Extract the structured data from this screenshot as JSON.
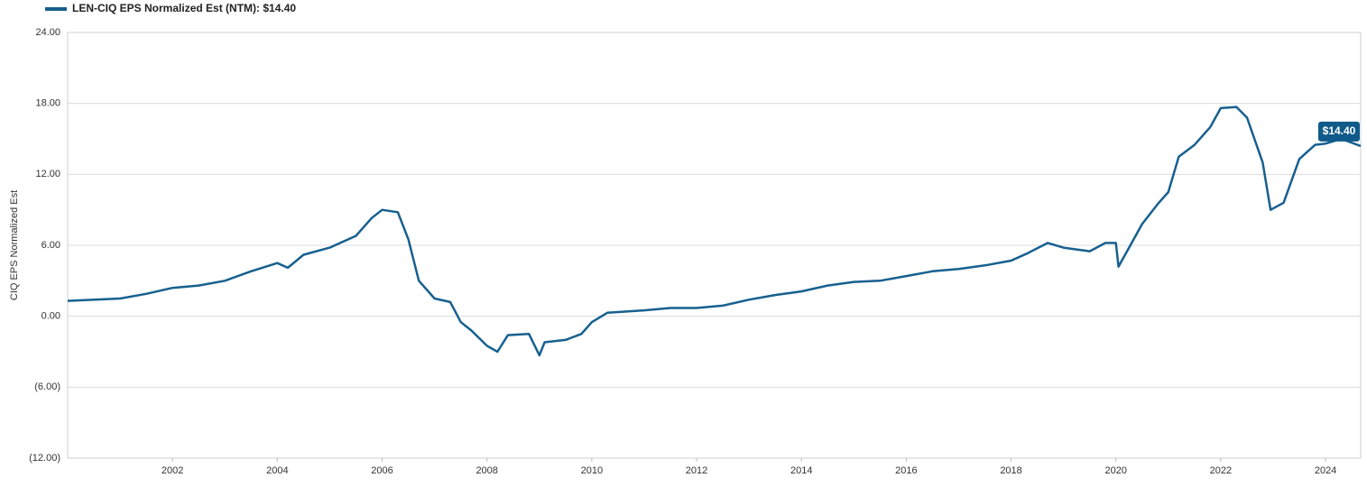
{
  "chart_data": {
    "type": "line",
    "legend_label": "LEN-CIQ EPS Normalized Est (NTM): $14.40",
    "y_label": "CIQ EPS Normalized Est",
    "end_label": "$14.40",
    "xlim": [
      2000,
      2024.67
    ],
    "xticks": [
      2002,
      2004,
      2006,
      2008,
      2010,
      2012,
      2014,
      2016,
      2018,
      2020,
      2022,
      2024
    ],
    "ylim": [
      -12,
      24
    ],
    "yticks": [
      {
        "value": -12,
        "label": "(12.00)"
      },
      {
        "value": -6,
        "label": "(6.00)"
      },
      {
        "value": 0,
        "label": "0.00"
      },
      {
        "value": 6,
        "label": "6.00"
      },
      {
        "value": 12,
        "label": "12.00"
      },
      {
        "value": 18,
        "label": "18.00"
      },
      {
        "value": 24,
        "label": "24.00"
      }
    ],
    "grid": true,
    "x": [
      2000,
      2001,
      2001.5,
      2002,
      2002.5,
      2003,
      2003.5,
      2004,
      2004.2,
      2004.5,
      2005,
      2005.5,
      2005.8,
      2006,
      2006.3,
      2006.5,
      2006.7,
      2007,
      2007.3,
      2007.5,
      2007.7,
      2008,
      2008.2,
      2008.4,
      2008.8,
      2009,
      2009.1,
      2009.5,
      2009.8,
      2010,
      2010.3,
      2011,
      2011.5,
      2012,
      2012.5,
      2013,
      2013.5,
      2014,
      2014.5,
      2015,
      2015.5,
      2016,
      2016.5,
      2017,
      2017.5,
      2018,
      2018.3,
      2018.7,
      2019,
      2019.5,
      2019.8,
      2020,
      2020.05,
      2020.25,
      2020.5,
      2020.8,
      2021,
      2021.2,
      2021.5,
      2021.8,
      2022,
      2022.3,
      2022.5,
      2022.8,
      2022.95,
      2023.2,
      2023.5,
      2023.8,
      2024,
      2024.3,
      2024.67
    ],
    "series": [
      {
        "name": "LEN-CIQ EPS Normalized Est (NTM)",
        "color": "#17608f",
        "values": [
          1.3,
          1.5,
          1.9,
          2.4,
          2.6,
          3.0,
          3.8,
          4.5,
          4.1,
          5.2,
          5.8,
          6.8,
          8.3,
          9.0,
          8.8,
          6.5,
          3.0,
          1.5,
          1.2,
          -0.5,
          -1.2,
          -2.5,
          -3.0,
          -1.6,
          -1.5,
          -3.3,
          -2.2,
          -2.0,
          -1.5,
          -0.5,
          0.3,
          0.5,
          0.7,
          0.7,
          0.9,
          1.4,
          1.8,
          2.1,
          2.6,
          2.9,
          3.0,
          3.4,
          3.8,
          4.0,
          4.3,
          4.7,
          5.3,
          6.2,
          5.8,
          5.5,
          6.2,
          6.2,
          4.2,
          5.8,
          7.8,
          9.5,
          10.5,
          13.5,
          14.5,
          16.0,
          17.6,
          17.7,
          16.8,
          13.0,
          9.0,
          9.6,
          13.3,
          14.5,
          14.6,
          15.0,
          14.4
        ]
      }
    ]
  }
}
